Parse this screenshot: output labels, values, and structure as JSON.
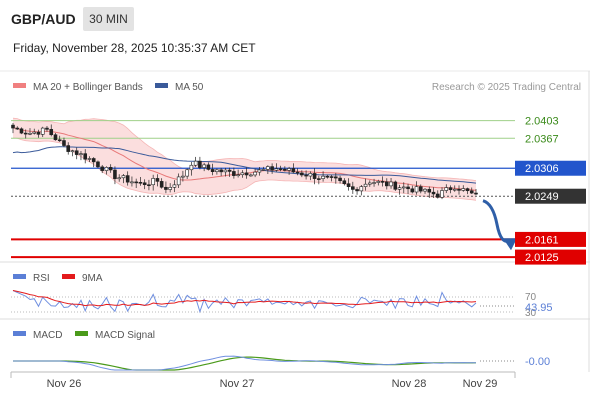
{
  "header": {
    "symbol": "GBP/AUD",
    "timeframe": "30 MIN",
    "datetime": "Friday, November 28, 2025 10:35:37 AM CET"
  },
  "chart_data": [
    {
      "type": "candlestick",
      "legend": [
        {
          "name": "MA 20 + Bollinger Bands",
          "color": "#f08080"
        },
        {
          "name": "MA 50",
          "color": "#3a5a9a"
        }
      ],
      "legend_placement": "top-left",
      "attribution": "Research © 2025 Trading Central",
      "ylim": [
        2.0115,
        2.0445
      ],
      "levels": [
        {
          "value": 2.0403,
          "label": "2.0403",
          "style": "green-line"
        },
        {
          "value": 2.0367,
          "label": "2.0367",
          "style": "green-line"
        },
        {
          "value": 2.0306,
          "label": "2.0306",
          "style": "blue-line"
        },
        {
          "value": 2.0249,
          "label": "2.0249",
          "style": "current-price"
        },
        {
          "value": 2.0161,
          "label": "2.0161",
          "style": "red-line"
        },
        {
          "value": 2.0125,
          "label": "2.0125",
          "style": "red-line"
        }
      ],
      "forecast_arrow": {
        "from": 2.024,
        "to": 2.0143
      }
    },
    {
      "type": "line",
      "legend": [
        {
          "name": "RSI",
          "color": "#5b7fd6"
        },
        {
          "name": "9MA",
          "color": "#e31a1c"
        }
      ],
      "ylim": [
        25,
        75
      ],
      "ticks": [
        {
          "value": 70,
          "label": "70"
        },
        {
          "value": 30,
          "label": "30"
        }
      ],
      "current": {
        "value": 43.95,
        "label": "43.95"
      }
    },
    {
      "type": "line",
      "legend": [
        {
          "name": "MACD",
          "color": "#5b7fd6"
        },
        {
          "name": "MACD Signal",
          "color": "#4a9a1a"
        }
      ],
      "current": {
        "value": 0,
        "label": "-0.00"
      }
    }
  ],
  "x_axis": {
    "ticks": [
      {
        "label": "Nov 26"
      },
      {
        "label": "Nov 27"
      },
      {
        "label": "Nov 28"
      },
      {
        "label": "Nov 29"
      }
    ]
  }
}
